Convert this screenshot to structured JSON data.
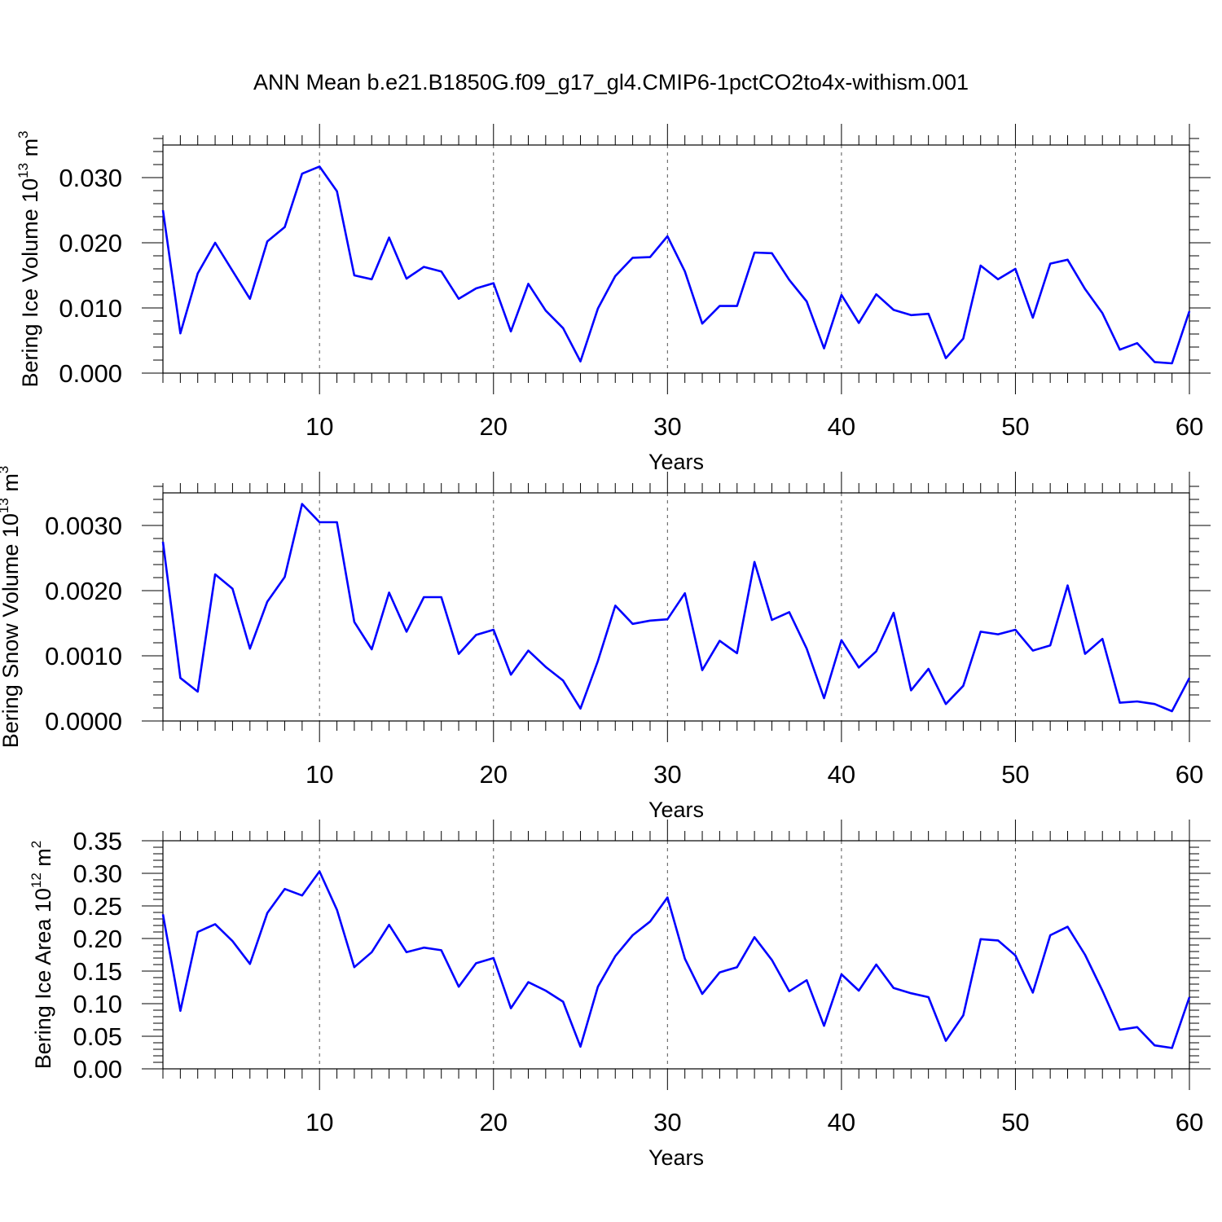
{
  "figure": {
    "title": "ANN Mean b.e21.B1850G.f09_g17_gl4.CMIP6-1pctCO2to4x-withism.001",
    "line_color": "#0000ff"
  },
  "chart_data": [
    {
      "type": "line",
      "title": "",
      "xlabel": "Years",
      "ylabel_main": "Bering Ice Volume 10",
      "ylabel_exp": "13",
      "ylabel_unit": " m",
      "ylabel_unit_exp": "3",
      "xlim": [
        1,
        60
      ],
      "ylim": [
        0.0,
        0.035
      ],
      "x_ticks": [
        10,
        20,
        30,
        40,
        50,
        60
      ],
      "x_tick_labels": [
        "10",
        "20",
        "30",
        "40",
        "50",
        "60"
      ],
      "y_ticks": [
        0.0,
        0.01,
        0.02,
        0.03
      ],
      "y_tick_labels": [
        "0.000",
        "0.010",
        "0.020",
        "0.030"
      ],
      "grid": "dashed vertical at major x ticks",
      "x": [
        1,
        2,
        3,
        4,
        5,
        6,
        7,
        8,
        9,
        10,
        11,
        12,
        13,
        14,
        15,
        16,
        17,
        18,
        19,
        20,
        21,
        22,
        23,
        24,
        25,
        26,
        27,
        28,
        29,
        30,
        31,
        32,
        33,
        34,
        35,
        36,
        37,
        38,
        39,
        40,
        41,
        42,
        43,
        44,
        45,
        46,
        47,
        48,
        49,
        50,
        51,
        52,
        53,
        54,
        55,
        56,
        57,
        58,
        59,
        60
      ],
      "y": [
        0.025,
        0.0061,
        0.0153,
        0.02,
        0.0157,
        0.0114,
        0.0202,
        0.0224,
        0.0306,
        0.0317,
        0.0279,
        0.015,
        0.0144,
        0.0208,
        0.0145,
        0.0163,
        0.0156,
        0.0114,
        0.013,
        0.0138,
        0.0064,
        0.0137,
        0.0096,
        0.0069,
        0.0018,
        0.0099,
        0.0149,
        0.0177,
        0.0178,
        0.021,
        0.0156,
        0.0076,
        0.0103,
        0.0103,
        0.0185,
        0.0184,
        0.0143,
        0.011,
        0.0038,
        0.012,
        0.0077,
        0.0121,
        0.0097,
        0.0089,
        0.0091,
        0.0023,
        0.0053,
        0.0165,
        0.0144,
        0.016,
        0.0085,
        0.0168,
        0.0174,
        0.0129,
        0.0092,
        0.0036,
        0.0046,
        0.0017,
        0.0015,
        0.0095
      ]
    },
    {
      "type": "line",
      "title": "",
      "xlabel": "Years",
      "ylabel_main": "Bering Snow Volume 10",
      "ylabel_exp": "13",
      "ylabel_unit": " m",
      "ylabel_unit_exp": "3",
      "xlim": [
        1,
        60
      ],
      "ylim": [
        0.0,
        0.0035
      ],
      "x_ticks": [
        10,
        20,
        30,
        40,
        50,
        60
      ],
      "x_tick_labels": [
        "10",
        "20",
        "30",
        "40",
        "50",
        "60"
      ],
      "y_ticks": [
        0.0,
        0.001,
        0.002,
        0.003
      ],
      "y_tick_labels": [
        "0.0000",
        "0.0010",
        "0.0020",
        "0.0030"
      ],
      "grid": "dashed vertical at major x ticks",
      "x": [
        1,
        2,
        3,
        4,
        5,
        6,
        7,
        8,
        9,
        10,
        11,
        12,
        13,
        14,
        15,
        16,
        17,
        18,
        19,
        20,
        21,
        22,
        23,
        24,
        25,
        26,
        27,
        28,
        29,
        30,
        31,
        32,
        33,
        34,
        35,
        36,
        37,
        38,
        39,
        40,
        41,
        42,
        43,
        44,
        45,
        46,
        47,
        48,
        49,
        50,
        51,
        52,
        53,
        54,
        55,
        56,
        57,
        58,
        59,
        60
      ],
      "y": [
        0.00275,
        0.00066,
        0.00045,
        0.00225,
        0.00203,
        0.00111,
        0.00183,
        0.00221,
        0.00333,
        0.00305,
        0.00305,
        0.00152,
        0.0011,
        0.00197,
        0.00137,
        0.0019,
        0.0019,
        0.00103,
        0.00132,
        0.0014,
        0.00071,
        0.00108,
        0.00083,
        0.00062,
        0.00019,
        0.00092,
        0.00177,
        0.00149,
        0.00154,
        0.00156,
        0.00196,
        0.00078,
        0.00123,
        0.00104,
        0.00244,
        0.00155,
        0.00167,
        0.00111,
        0.00035,
        0.00124,
        0.00082,
        0.00107,
        0.00166,
        0.00047,
        0.0008,
        0.00026,
        0.00054,
        0.00137,
        0.00133,
        0.0014,
        0.00108,
        0.00116,
        0.00208,
        0.00103,
        0.00126,
        0.00028,
        0.0003,
        0.00026,
        0.00015,
        0.00066
      ]
    },
    {
      "type": "line",
      "title": "",
      "xlabel": "Years",
      "ylabel_main": "Bering Ice Area 10",
      "ylabel_exp": "12",
      "ylabel_unit": " m",
      "ylabel_unit_exp": "2",
      "xlim": [
        1,
        60
      ],
      "ylim": [
        0.0,
        0.35
      ],
      "x_ticks": [
        10,
        20,
        30,
        40,
        50,
        60
      ],
      "x_tick_labels": [
        "10",
        "20",
        "30",
        "40",
        "50",
        "60"
      ],
      "y_ticks": [
        0.0,
        0.05,
        0.1,
        0.15,
        0.2,
        0.25,
        0.3,
        0.35
      ],
      "y_tick_labels": [
        "0.00",
        "0.05",
        "0.10",
        "0.15",
        "0.20",
        "0.25",
        "0.30",
        "0.35"
      ],
      "grid": "dashed vertical at major x ticks",
      "x": [
        1,
        2,
        3,
        4,
        5,
        6,
        7,
        8,
        9,
        10,
        11,
        12,
        13,
        14,
        15,
        16,
        17,
        18,
        19,
        20,
        21,
        22,
        23,
        24,
        25,
        26,
        27,
        28,
        29,
        30,
        31,
        32,
        33,
        34,
        35,
        36,
        37,
        38,
        39,
        40,
        41,
        42,
        43,
        44,
        45,
        46,
        47,
        48,
        49,
        50,
        51,
        52,
        53,
        54,
        55,
        56,
        57,
        58,
        59,
        60
      ],
      "y": [
        0.237,
        0.089,
        0.21,
        0.222,
        0.196,
        0.161,
        0.239,
        0.276,
        0.266,
        0.303,
        0.244,
        0.156,
        0.179,
        0.221,
        0.179,
        0.186,
        0.182,
        0.126,
        0.162,
        0.17,
        0.093,
        0.133,
        0.12,
        0.103,
        0.034,
        0.126,
        0.173,
        0.205,
        0.226,
        0.263,
        0.169,
        0.115,
        0.148,
        0.156,
        0.202,
        0.167,
        0.119,
        0.136,
        0.066,
        0.145,
        0.12,
        0.16,
        0.124,
        0.116,
        0.11,
        0.043,
        0.082,
        0.199,
        0.197,
        0.174,
        0.117,
        0.205,
        0.218,
        0.175,
        0.12,
        0.06,
        0.064,
        0.036,
        0.032,
        0.11
      ]
    }
  ]
}
